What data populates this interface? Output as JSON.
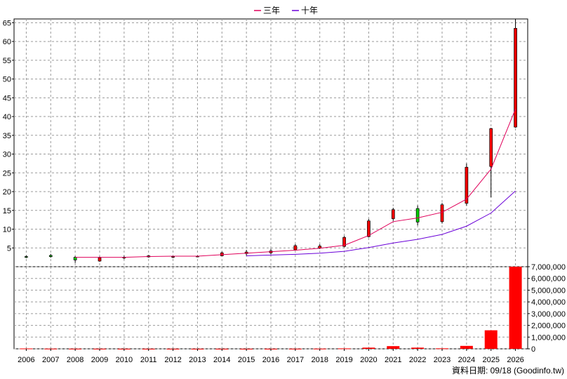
{
  "chart_data": {
    "type": "candlestick+line+bar",
    "legend": [
      {
        "name": "三年",
        "color": "#e0005a"
      },
      {
        "name": "十年",
        "color": "#6a00d8"
      }
    ],
    "legend_placement": "top-center",
    "grid": true,
    "years": [
      "2006",
      "2007",
      "2008",
      "2009",
      "2010",
      "2011",
      "2012",
      "2013",
      "2014",
      "2015",
      "2016",
      "2017",
      "2018",
      "2019",
      "2020",
      "2021",
      "2022",
      "2023",
      "2024",
      "2025",
      "2026"
    ],
    "price_axis": {
      "ylim": [
        0,
        66
      ],
      "ticks": [
        5,
        10,
        15,
        20,
        25,
        30,
        35,
        40,
        45,
        50,
        55,
        60,
        65
      ]
    },
    "candles": [
      {
        "year": "2006",
        "open": 2.7,
        "close": 2.5,
        "high": 3.0,
        "low": 2.3
      },
      {
        "year": "2007",
        "open": 3.0,
        "close": 2.7,
        "high": 3.4,
        "low": 2.4
      },
      {
        "year": "2008",
        "open": 2.5,
        "close": 1.8,
        "high": 2.8,
        "low": 1.0
      },
      {
        "year": "2009",
        "open": 1.5,
        "close": 2.4,
        "high": 2.7,
        "low": 1.3
      },
      {
        "year": "2010",
        "open": 2.4,
        "close": 2.5,
        "high": 2.9,
        "low": 2.0
      },
      {
        "year": "2011",
        "open": 2.6,
        "close": 2.9,
        "high": 3.1,
        "low": 2.4
      },
      {
        "year": "2012",
        "open": 2.6,
        "close": 2.7,
        "high": 2.9,
        "low": 2.3
      },
      {
        "year": "2013",
        "open": 2.7,
        "close": 2.8,
        "high": 3.0,
        "low": 2.5
      },
      {
        "year": "2014",
        "open": 2.9,
        "close": 3.7,
        "high": 4.0,
        "low": 2.8
      },
      {
        "year": "2015",
        "open": 3.5,
        "close": 3.9,
        "high": 4.5,
        "low": 3.0
      },
      {
        "year": "2016",
        "open": 3.7,
        "close": 4.2,
        "high": 4.8,
        "low": 3.3
      },
      {
        "year": "2017",
        "open": 4.5,
        "close": 5.6,
        "high": 6.0,
        "low": 4.3
      },
      {
        "year": "2018",
        "open": 5.0,
        "close": 5.5,
        "high": 6.0,
        "low": 4.7
      },
      {
        "year": "2019",
        "open": 5.4,
        "close": 7.8,
        "high": 8.2,
        "low": 5.2
      },
      {
        "year": "2020",
        "open": 8.0,
        "close": 12.2,
        "high": 12.7,
        "low": 7.8
      },
      {
        "year": "2021",
        "open": 12.8,
        "close": 15.2,
        "high": 15.7,
        "low": 12.2
      },
      {
        "year": "2022",
        "open": 15.5,
        "close": 11.9,
        "high": 16.3,
        "low": 11.0
      },
      {
        "year": "2023",
        "open": 12.0,
        "close": 16.5,
        "high": 17.0,
        "low": 11.5
      },
      {
        "year": "2024",
        "open": 16.9,
        "close": 26.5,
        "high": 27.5,
        "low": 16.3
      },
      {
        "year": "2025",
        "open": 26.7,
        "close": 36.8,
        "high": 37.0,
        "low": 18.5
      },
      {
        "year": "2026",
        "open": 37.2,
        "close": 63.5,
        "high": 66.0,
        "low": 37.0
      }
    ],
    "ma_3y": {
      "name": "三年",
      "x": [
        "2008",
        "2009",
        "2010",
        "2011",
        "2012",
        "2013",
        "2014",
        "2015",
        "2016",
        "2017",
        "2018",
        "2019",
        "2020",
        "2021",
        "2022",
        "2023",
        "2024",
        "2025",
        "2026"
      ],
      "values": [
        2.5,
        2.5,
        2.5,
        2.7,
        2.8,
        2.8,
        3.2,
        3.6,
        4.0,
        4.4,
        4.9,
        5.7,
        8.3,
        12.0,
        13.0,
        14.5,
        18.0,
        26.0,
        42.0
      ]
    },
    "ma_10y": {
      "name": "十年",
      "x": [
        "2015",
        "2016",
        "2017",
        "2018",
        "2019",
        "2020",
        "2021",
        "2022",
        "2023",
        "2024",
        "2025",
        "2026"
      ],
      "values": [
        2.9,
        3.1,
        3.3,
        3.6,
        4.1,
        5.1,
        6.3,
        7.3,
        8.6,
        10.8,
        14.3,
        20.2
      ]
    },
    "volume_axis": {
      "ylim": [
        0,
        7000000
      ],
      "ticks": [
        "0",
        "1,000,000",
        "2,000,000",
        "3,000,000",
        "4,000,000",
        "5,000,000",
        "6,000,000",
        "7,000,000"
      ]
    },
    "volume": [
      30000,
      15000,
      10000,
      8000,
      5000,
      5000,
      5000,
      5000,
      5000,
      5000,
      5000,
      10000,
      15000,
      35000,
      100000,
      230000,
      100000,
      40000,
      250000,
      1580000,
      7000000
    ],
    "footer": "資料日期: 09/18 (Goodinfo.tw)"
  }
}
